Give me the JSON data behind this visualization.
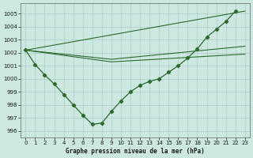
{
  "title": "Graphe pression niveau de la mer (hPa)",
  "background_color": "#cce8e0",
  "grid_color": "#aacccc",
  "line_color": "#2d6a2d",
  "xlim": [
    -0.5,
    23.5
  ],
  "ylim": [
    995.5,
    1005.8
  ],
  "yticks": [
    996,
    997,
    998,
    999,
    1000,
    1001,
    1002,
    1003,
    1004,
    1005
  ],
  "xticks": [
    0,
    1,
    2,
    3,
    4,
    5,
    6,
    7,
    8,
    9,
    10,
    11,
    12,
    13,
    14,
    15,
    16,
    17,
    18,
    19,
    20,
    21,
    22,
    23
  ],
  "main_x": [
    0,
    1,
    2,
    3,
    4,
    5,
    6,
    7,
    8,
    9,
    10,
    11,
    12,
    13,
    14,
    15,
    16,
    17,
    18,
    19,
    20,
    21,
    22
  ],
  "main_y": [
    1002.2,
    1001.1,
    1000.3,
    999.6,
    998.8,
    998.0,
    997.2,
    996.5,
    996.6,
    997.5,
    998.3,
    999.0,
    999.5,
    999.8,
    1000.0,
    1000.5,
    1001.0,
    1001.6,
    1002.3,
    1003.2,
    1003.8,
    1004.4,
    1005.2
  ],
  "trend1_x": [
    0,
    23
  ],
  "trend1_y": [
    1002.2,
    1005.2
  ],
  "trend2_x": [
    0,
    9,
    23
  ],
  "trend2_y": [
    1002.2,
    1001.5,
    1002.5
  ],
  "trend3_x": [
    0,
    9,
    23
  ],
  "trend3_y": [
    1002.2,
    1001.3,
    1001.9
  ]
}
